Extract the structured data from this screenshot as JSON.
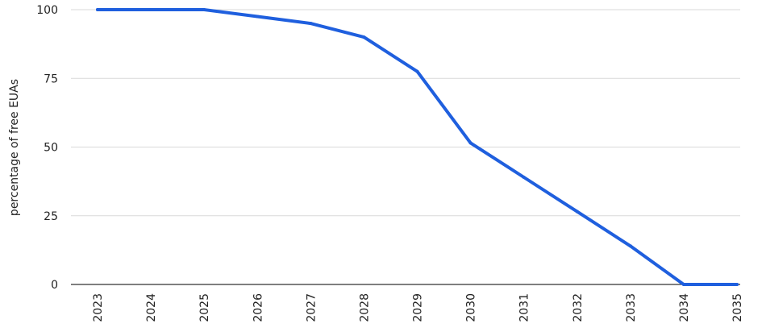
{
  "chart_data": {
    "type": "line",
    "title": "",
    "xlabel": "",
    "ylabel": "percentage of free EUAs",
    "x": [
      "2023",
      "2024",
      "2025",
      "2026",
      "2027",
      "2028",
      "2029",
      "2030",
      "2031",
      "2032",
      "2033",
      "2034",
      "2035"
    ],
    "series": [
      {
        "values": [
          100,
          100,
          100,
          97.5,
          95,
          90,
          77.5,
          51.5,
          39,
          26.5,
          14,
          0,
          0
        ],
        "color": "#1f5fde"
      }
    ],
    "ylim": [
      0,
      100
    ],
    "yticks": [
      "0",
      "25",
      "50",
      "75",
      "100"
    ],
    "grid": true,
    "legend": "none"
  }
}
